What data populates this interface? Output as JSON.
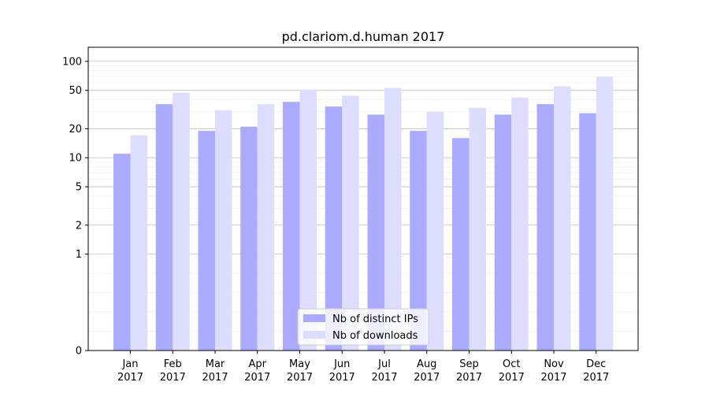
{
  "chart_data": {
    "type": "bar",
    "title": "pd.clariom.d.human 2017",
    "xlabel": "",
    "ylabel": "",
    "y_scale": "symlog",
    "y_ticks": [
      0,
      1,
      2,
      5,
      10,
      20,
      50,
      100
    ],
    "y_tick_labels": [
      "0",
      "1",
      "2",
      "5",
      "10",
      "20",
      "50",
      "100"
    ],
    "categories": [
      [
        "Jan",
        "2017"
      ],
      [
        "Feb",
        "2017"
      ],
      [
        "Mar",
        "2017"
      ],
      [
        "Apr",
        "2017"
      ],
      [
        "May",
        "2017"
      ],
      [
        "Jun",
        "2017"
      ],
      [
        "Jul",
        "2017"
      ],
      [
        "Aug",
        "2017"
      ],
      [
        "Sep",
        "2017"
      ],
      [
        "Oct",
        "2017"
      ],
      [
        "Nov",
        "2017"
      ],
      [
        "Dec",
        "2017"
      ]
    ],
    "series": [
      {
        "name": "Nb of distinct IPs",
        "color": "#aaaaff",
        "values": [
          11,
          36,
          19,
          21,
          38,
          34,
          28,
          19,
          16,
          28,
          36,
          29
        ]
      },
      {
        "name": "Nb of downloads",
        "color": "#ddddff",
        "values": [
          17,
          47,
          31,
          36,
          51,
          44,
          53,
          30,
          33,
          42,
          55,
          69
        ]
      }
    ],
    "grid": true,
    "legend_position": "bottom-center"
  }
}
